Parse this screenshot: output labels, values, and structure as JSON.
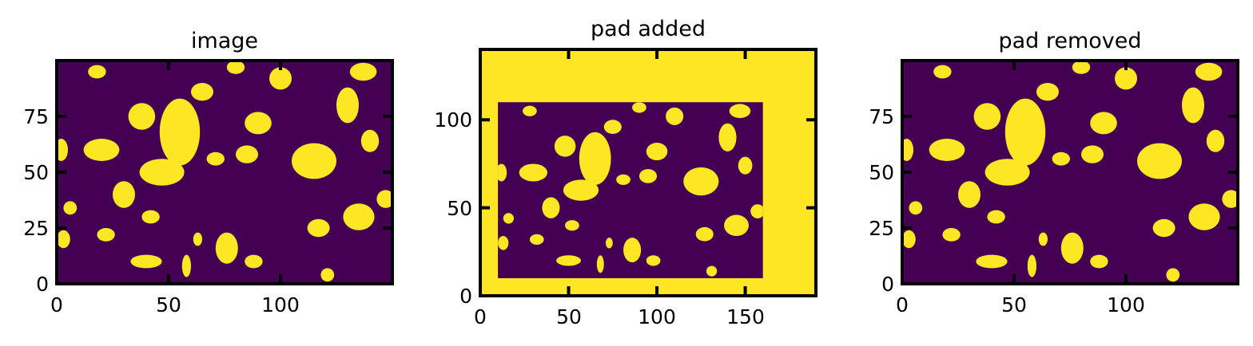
{
  "chart_data": [
    {
      "type": "heatmap",
      "title": "image",
      "xlabel": "",
      "ylabel": "",
      "xlim": [
        0,
        150
      ],
      "ylim": [
        0,
        100
      ],
      "xticks": [
        0,
        50,
        100
      ],
      "yticks": [
        0,
        25,
        50,
        75
      ],
      "grid": false,
      "colormap": {
        "low": "#440154",
        "high": "#fde725"
      },
      "values": "binary 0/1 pattern of irregular yellow blobs on a purple field",
      "layers": [
        {
          "value": 0,
          "shape": "rect",
          "x0": 0,
          "x1": 150,
          "y0": 0,
          "y1": 100
        }
      ]
    },
    {
      "type": "heatmap",
      "title": "pad added",
      "xlabel": "",
      "ylabel": "",
      "xlim": [
        0,
        190
      ],
      "ylim": [
        0,
        140
      ],
      "xticks": [
        0,
        50,
        100,
        150
      ],
      "yticks": [
        0,
        50,
        100
      ],
      "grid": false,
      "colormap": {
        "low": "#440154",
        "high": "#fde725"
      },
      "layers": [
        {
          "value": 1,
          "shape": "rect",
          "x0": 0,
          "x1": 190,
          "y0": 0,
          "y1": 140
        },
        {
          "value": 0,
          "shape": "rect",
          "x0": 10,
          "x1": 160,
          "y0": 10,
          "y1": 110
        }
      ]
    },
    {
      "type": "heatmap",
      "title": "pad removed",
      "xlabel": "",
      "ylabel": "",
      "xlim": [
        0,
        150
      ],
      "ylim": [
        0,
        100
      ],
      "xticks": [
        0,
        50,
        100
      ],
      "yticks": [
        0,
        25,
        50,
        75
      ],
      "grid": false,
      "colormap": {
        "low": "#440154",
        "high": "#fde725"
      },
      "layers": [
        {
          "value": 0,
          "shape": "rect",
          "x0": 0,
          "x1": 150,
          "y0": 0,
          "y1": 100
        }
      ]
    }
  ],
  "blobs": [
    [
      20,
      60,
      8,
      5
    ],
    [
      38,
      75,
      6,
      6
    ],
    [
      55,
      68,
      9,
      15
    ],
    [
      47,
      50,
      10,
      6
    ],
    [
      90,
      72,
      6,
      5
    ],
    [
      65,
      86,
      5,
      4
    ],
    [
      115,
      55,
      10,
      8
    ],
    [
      130,
      80,
      5,
      8
    ],
    [
      137,
      95,
      6,
      4
    ],
    [
      140,
      64,
      4,
      5
    ],
    [
      100,
      92,
      5,
      5
    ],
    [
      80,
      97,
      4,
      3
    ],
    [
      18,
      95,
      4,
      3
    ],
    [
      2,
      60,
      3,
      5
    ],
    [
      22,
      22,
      4,
      3
    ],
    [
      42,
      30,
      4,
      3
    ],
    [
      76,
      16,
      5,
      7
    ],
    [
      88,
      10,
      4,
      3
    ],
    [
      117,
      25,
      5,
      4
    ],
    [
      135,
      30,
      7,
      6
    ],
    [
      147,
      38,
      4,
      4
    ],
    [
      40,
      10,
      7,
      3
    ],
    [
      58,
      8,
      2,
      5
    ],
    [
      3,
      20,
      3,
      4
    ],
    [
      121,
      4,
      3,
      3
    ],
    [
      63,
      20,
      2,
      3
    ],
    [
      6,
      34,
      3,
      3
    ],
    [
      71,
      56,
      4,
      3
    ],
    [
      30,
      40,
      5,
      6
    ],
    [
      85,
      58,
      5,
      4
    ]
  ]
}
